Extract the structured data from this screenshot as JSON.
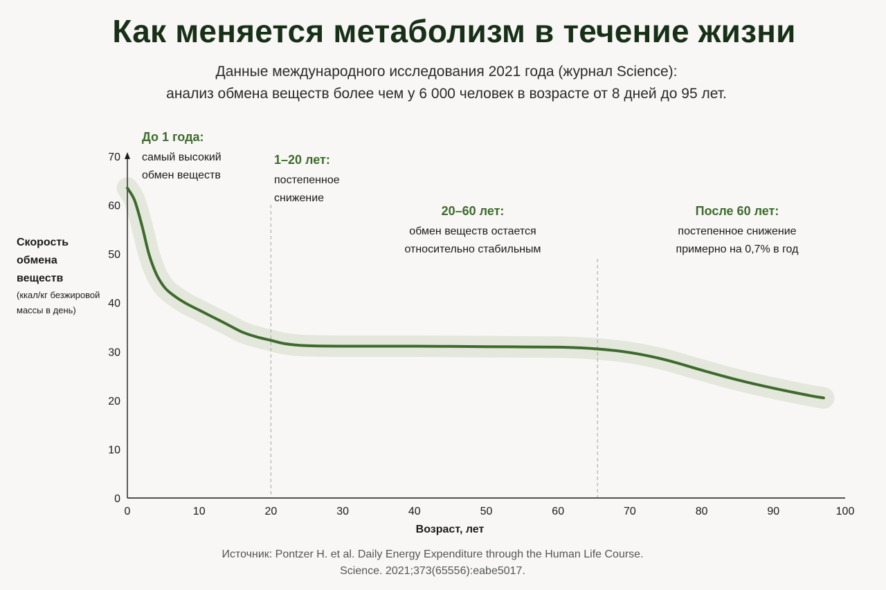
{
  "title": "Как меняется метаболизм в течение жизни",
  "subtitle": [
    "Данные международного исследования 2021 года (журнал Science):",
    "анализ обмена веществ более чем у 6 000 человек в возрасте от 8 дней до 95 лет."
  ],
  "annotations": [
    {
      "heading": "До 1 года:",
      "lines": [
        "самый высокий",
        "обмен веществ"
      ]
    },
    {
      "heading": "1–20 лет:",
      "lines": [
        "постепенное",
        "снижение"
      ]
    },
    {
      "heading": "20–60 лет:",
      "lines": [
        "обмен веществ остается",
        "относительно стабильным"
      ]
    },
    {
      "heading": "После 60 лет:",
      "lines": [
        "постепенное снижение",
        "примерно на 0,7% в год"
      ]
    }
  ],
  "source": [
    "Источник: Pontzer H. et al. Daily Energy Expenditure through the Human Life Course.",
    "Science. 2021;373(65556):eabe5017."
  ],
  "colors": {
    "line": "#3d6b2c",
    "band": "#e4e7dc",
    "heading": "#3d6b2c",
    "divider": "#b0b0b0"
  },
  "chart_data": {
    "type": "line",
    "title": "",
    "xlabel": "Возраст, лет",
    "ylabel": "Скорость обмена веществ",
    "ylabel_unit": "(ккал/кг безжировой массы в день)",
    "xlim": [
      0,
      100
    ],
    "ylim": [
      0,
      70
    ],
    "xticks": [
      0,
      10,
      20,
      30,
      40,
      50,
      60,
      70,
      80,
      90,
      100
    ],
    "yticks": [
      0,
      10,
      20,
      30,
      40,
      50,
      60,
      70
    ],
    "grid": false,
    "dividers_x": [
      20,
      65.5
    ],
    "series": [
      {
        "x": [
          0,
          1,
          2,
          3,
          4,
          5,
          6,
          8,
          10,
          12,
          14,
          16,
          18,
          20,
          22,
          25,
          30,
          40,
          50,
          60,
          65,
          70,
          75,
          80,
          85,
          90,
          95,
          97
        ],
        "values": [
          63.5,
          61,
          56,
          50,
          46,
          43.5,
          42,
          40,
          38.5,
          37,
          35.5,
          34,
          33,
          32.3,
          31.6,
          31.2,
          31.1,
          31.1,
          31,
          30.9,
          30.6,
          29.8,
          28.3,
          26.2,
          24.2,
          22.5,
          21,
          20.5
        ],
        "band_halfwidth": 2.2
      }
    ]
  }
}
